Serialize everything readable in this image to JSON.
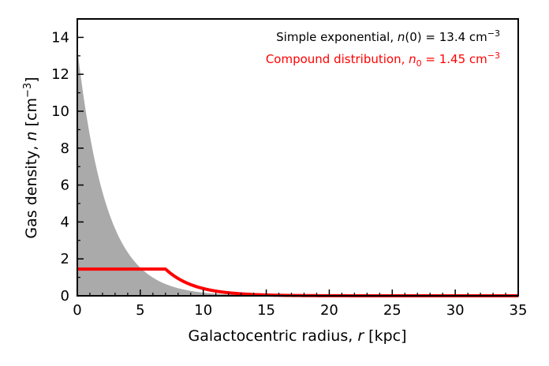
{
  "chart_data": {
    "type": "area",
    "xlabel_prefix": "Galactocentric radius, ",
    "xlabel_var": "r",
    "xlabel_suffix": " [kpc]",
    "ylabel_prefix": "Gas density, ",
    "ylabel_var": "n",
    "ylabel_suffix": " [cm",
    "ylabel_sup": "−3",
    "ylabel_end": "]",
    "xlim": [
      0,
      35
    ],
    "ylim": [
      0,
      15
    ],
    "x_ticks": [
      "0",
      "5",
      "10",
      "15",
      "20",
      "25",
      "30",
      "35"
    ],
    "y_ticks": [
      "0",
      "2",
      "4",
      "6",
      "8",
      "10",
      "12",
      "14"
    ],
    "grid": false,
    "legend_position": "top-right",
    "series": [
      {
        "name_prefix": "Simple exponential, ",
        "name_var": "n",
        "name_mid": "(0) = 13.4 cm",
        "name_sup": "−3",
        "style": "filled-area",
        "color": "#aaaaaa",
        "legend_color": "#000000",
        "n0": 13.4,
        "scale_length_kpc": 2.3,
        "x": [
          0,
          1,
          2,
          3,
          4,
          5,
          6,
          7,
          8,
          9,
          10,
          12,
          14,
          16,
          20,
          25,
          30,
          35
        ],
        "y": [
          13.4,
          8.42,
          5.3,
          3.33,
          2.09,
          1.32,
          0.83,
          0.52,
          0.33,
          0.21,
          0.13,
          0.05,
          0.02,
          0.01,
          0.0,
          0.0,
          0.0,
          0.0
        ]
      },
      {
        "name_prefix": "Compound distribution, ",
        "name_var": "n",
        "name_sub": "0",
        "name_mid": " = 1.45 cm",
        "name_sup": "−3",
        "style": "line",
        "color": "#ff0000",
        "n0": 1.45,
        "x": [
          0,
          1,
          2,
          3,
          4,
          5,
          6,
          7,
          8,
          9,
          10,
          12,
          14,
          16,
          20,
          25,
          30,
          35
        ],
        "y": [
          1.45,
          1.45,
          1.45,
          1.45,
          1.45,
          1.45,
          1.45,
          1.45,
          0.94,
          0.61,
          0.39,
          0.16,
          0.07,
          0.03,
          0.01,
          0.0,
          0.0,
          0.0
        ]
      }
    ]
  }
}
